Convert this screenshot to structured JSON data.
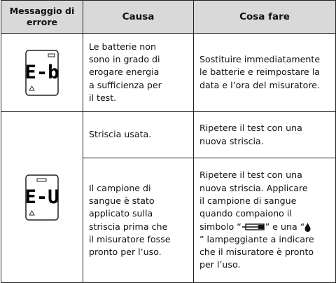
{
  "table": {
    "header": [
      "Messaggio di errore",
      "Causa",
      "Cosa fare"
    ],
    "rows": [
      {
        "code": "E-b",
        "cause": [
          "Le batterie non",
          "sono in grado di",
          "erogare energia",
          "a sufficienza per",
          "il test."
        ],
        "action": [
          "Sostituire immediatamente",
          "le batterie e reimpostare la",
          "data e l’ora del misuratore."
        ]
      },
      {
        "code": "E-U",
        "cause": [
          "Striscia usata."
        ],
        "action": [
          "Ripetere il test con una",
          "nuova striscia."
        ]
      },
      {
        "cause": [
          "Il campione di",
          "sangue è stato",
          "applicato sulla",
          "striscia prima che",
          "il misuratore fosse",
          "pronto per l’uso."
        ],
        "action": [
          "Ripetere il test con una",
          "nuova striscia. Applicare",
          "il campione di sangue",
          "quando compaiono il",
          [
            "simbolo “",
            "” e una “"
          ],
          "” lampeggiante a indicare",
          "che il misuratore è pronto",
          "per l’uso."
        ]
      }
    ]
  }
}
